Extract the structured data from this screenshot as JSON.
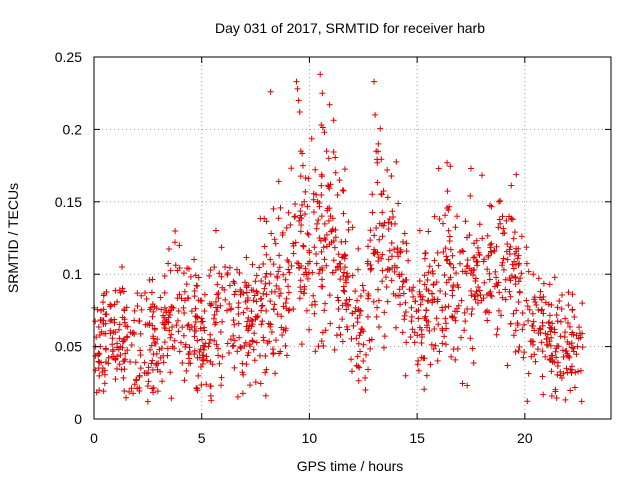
{
  "chart_data": {
    "type": "scatter",
    "title": "Day 031 of 2017, SRMTID for receiver harb",
    "xlabel": "GPS time / hours",
    "ylabel": "SRMTID / TECUs",
    "xlim": [
      0,
      24
    ],
    "ylim": [
      0,
      0.25
    ],
    "x_ticks": [
      0,
      5,
      10,
      15,
      20
    ],
    "x_tick_labels": [
      "0",
      "5",
      "10",
      "15",
      "20"
    ],
    "y_ticks": [
      0,
      0.05,
      0.1,
      0.15,
      0.2,
      0.25
    ],
    "y_tick_labels": [
      "0",
      "0.05",
      "0.1",
      "0.15",
      "0.2",
      "0.25"
    ],
    "grid": true,
    "marker": "+",
    "series_color": "#e00000",
    "trend": [
      [
        0.0,
        0.055
      ],
      [
        1.0,
        0.055
      ],
      [
        2.0,
        0.052
      ],
      [
        3.0,
        0.055
      ],
      [
        3.5,
        0.07
      ],
      [
        4.5,
        0.062
      ],
      [
        5.0,
        0.058
      ],
      [
        5.5,
        0.065
      ],
      [
        6.0,
        0.08
      ],
      [
        6.5,
        0.065
      ],
      [
        7.0,
        0.07
      ],
      [
        8.0,
        0.085
      ],
      [
        9.0,
        0.1
      ],
      [
        9.5,
        0.125
      ],
      [
        10.0,
        0.12
      ],
      [
        10.5,
        0.13
      ],
      [
        11.0,
        0.135
      ],
      [
        11.5,
        0.1
      ],
      [
        12.0,
        0.085
      ],
      [
        12.5,
        0.06
      ],
      [
        13.0,
        0.125
      ],
      [
        13.5,
        0.13
      ],
      [
        14.0,
        0.11
      ],
      [
        14.5,
        0.08
      ],
      [
        15.0,
        0.07
      ],
      [
        15.5,
        0.075
      ],
      [
        16.0,
        0.09
      ],
      [
        16.5,
        0.095
      ],
      [
        17.0,
        0.085
      ],
      [
        17.5,
        0.095
      ],
      [
        18.0,
        0.1
      ],
      [
        18.5,
        0.11
      ],
      [
        19.0,
        0.105
      ],
      [
        19.5,
        0.1
      ],
      [
        20.0,
        0.075
      ],
      [
        21.0,
        0.055
      ],
      [
        22.0,
        0.048
      ],
      [
        22.7,
        0.05
      ]
    ],
    "outliers": [
      [
        8.2,
        0.226
      ],
      [
        9.4,
        0.233
      ],
      [
        9.45,
        0.228
      ],
      [
        9.5,
        0.22
      ],
      [
        9.55,
        0.212
      ],
      [
        10.5,
        0.238
      ],
      [
        10.6,
        0.225
      ],
      [
        10.55,
        0.203
      ],
      [
        10.7,
        0.198
      ],
      [
        10.8,
        0.185
      ],
      [
        13.0,
        0.233
      ],
      [
        13.05,
        0.21
      ],
      [
        13.1,
        0.185
      ],
      [
        13.15,
        0.177
      ],
      [
        16.0,
        0.173
      ],
      [
        17.5,
        0.173
      ],
      [
        13.2,
        0.19
      ],
      [
        9.6,
        0.185
      ],
      [
        9.7,
        0.175
      ],
      [
        10.9,
        0.18
      ],
      [
        11.4,
        0.165
      ],
      [
        12.6,
        0.02
      ],
      [
        2.5,
        0.012
      ],
      [
        1.3,
        0.105
      ],
      [
        18.8,
        0.15
      ]
    ],
    "point_count": 1400,
    "x_end": 22.7
  }
}
